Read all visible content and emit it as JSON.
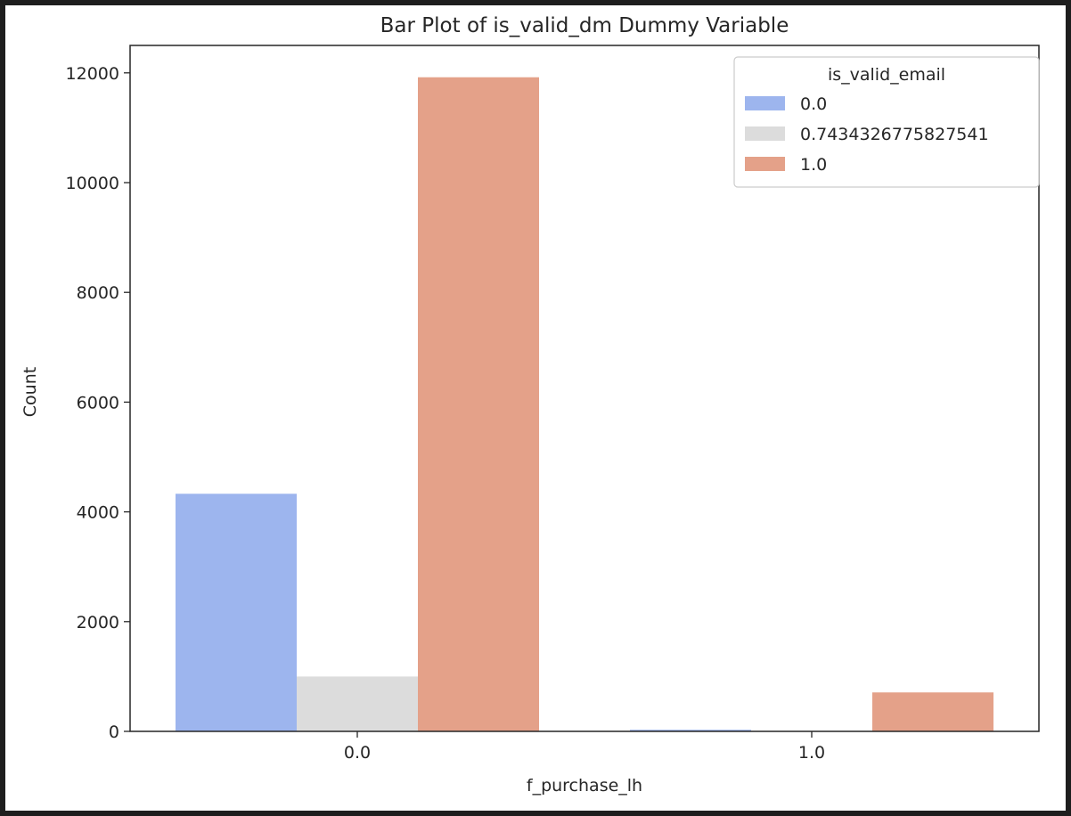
{
  "chart_data": {
    "type": "bar",
    "title": "Bar Plot of is_valid_dm Dummy Variable",
    "xlabel": "f_purchase_lh",
    "ylabel": "Count",
    "categories": [
      "0.0",
      "1.0"
    ],
    "ylim": [
      0,
      12500
    ],
    "yticks": [
      0,
      2000,
      4000,
      6000,
      8000,
      10000,
      12000
    ],
    "grid": false,
    "legend": {
      "title": "is_valid_email",
      "placement": "top-right"
    },
    "series": [
      {
        "name": "0.0",
        "color": "#9db5ee",
        "values": [
          4330,
          30
        ]
      },
      {
        "name": "0.7434326775827541",
        "color": "#dcdcdc",
        "values": [
          1000,
          5
        ]
      },
      {
        "name": "1.0",
        "color": "#e4a189",
        "values": [
          11920,
          710
        ]
      }
    ]
  }
}
